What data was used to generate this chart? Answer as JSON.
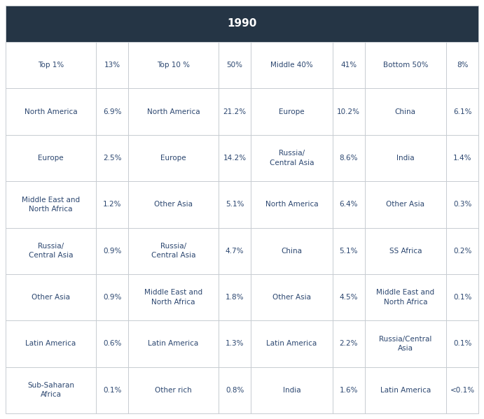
{
  "title": "1990",
  "title_bg": "#253545",
  "title_color": "#ffffff",
  "title_fontsize": 11,
  "header_row": [
    {
      "label": "Top 1%",
      "value": "13%"
    },
    {
      "label": "Top 10 %",
      "value": "50%"
    },
    {
      "label": "Middle 40%",
      "value": "41%"
    },
    {
      "label": "Bottom 50%",
      "value": "8%"
    }
  ],
  "data_rows": [
    [
      {
        "label": "North America",
        "value": "6.9%"
      },
      {
        "label": "North America",
        "value": "21.2%"
      },
      {
        "label": "Europe",
        "value": "10.2%"
      },
      {
        "label": "China",
        "value": "6.1%"
      }
    ],
    [
      {
        "label": "Europe",
        "value": "2.5%"
      },
      {
        "label": "Europe",
        "value": "14.2%"
      },
      {
        "label": "Russia/\nCentral Asia",
        "value": "8.6%"
      },
      {
        "label": "India",
        "value": "1.4%"
      }
    ],
    [
      {
        "label": "Middle East and\nNorth Africa",
        "value": "1.2%"
      },
      {
        "label": "Other Asia",
        "value": "5.1%"
      },
      {
        "label": "North America",
        "value": "6.4%"
      },
      {
        "label": "Other Asia",
        "value": "0.3%"
      }
    ],
    [
      {
        "label": "Russia/\nCentral Asia",
        "value": "0.9%"
      },
      {
        "label": "Russia/\nCentral Asia",
        "value": "4.7%"
      },
      {
        "label": "China",
        "value": "5.1%"
      },
      {
        "label": "SS Africa",
        "value": "0.2%"
      }
    ],
    [
      {
        "label": "Other Asia",
        "value": "0.9%"
      },
      {
        "label": "Middle East and\nNorth Africa",
        "value": "1.8%"
      },
      {
        "label": "Other Asia",
        "value": "4.5%"
      },
      {
        "label": "Middle East and\nNorth Africa",
        "value": "0.1%"
      }
    ],
    [
      {
        "label": "Latin America",
        "value": "0.6%"
      },
      {
        "label": "Latin America",
        "value": "1.3%"
      },
      {
        "label": "Latin America",
        "value": "2.2%"
      },
      {
        "label": "Russia/Central\nAsia",
        "value": "0.1%"
      }
    ],
    [
      {
        "label": "Sub-Saharan\nAfrica",
        "value": "0.1%"
      },
      {
        "label": "Other rich",
        "value": "0.8%"
      },
      {
        "label": "India",
        "value": "1.6%"
      },
      {
        "label": "Latin America",
        "value": "<0.1%"
      }
    ]
  ],
  "text_color": "#2c4770",
  "value_color": "#2c4770",
  "border_color": "#c8cdd2",
  "bg_color": "#ffffff",
  "cell_text_fontsize": 7.5,
  "cell_value_fontsize": 7.5
}
